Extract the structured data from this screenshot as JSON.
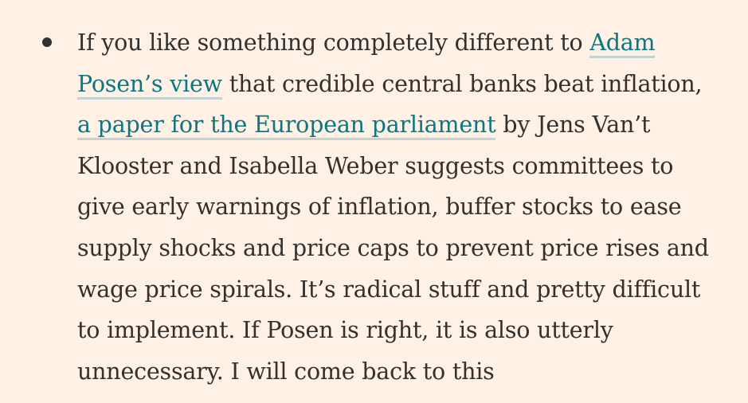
{
  "article": {
    "bullet": {
      "lines": [
        [
          {
            "text": "If you like something completely different to ",
            "link": false
          },
          {
            "text": "Adam",
            "link": true
          }
        ],
        [
          {
            "text": "Posen’s view",
            "link": true
          },
          {
            "text": " that credible central banks beat inflation,",
            "link": false
          }
        ],
        [
          {
            "text": "a paper for the European parliament",
            "link": true
          },
          {
            "text": " by Jens Van’t",
            "link": false
          }
        ],
        [
          {
            "text": "Klooster and Isabella Weber suggests committees to",
            "link": false
          }
        ],
        [
          {
            "text": "give early warnings of inflation, buffer stocks to ease",
            "link": false
          }
        ],
        [
          {
            "text": "supply shocks and price caps to prevent price rises and",
            "link": false
          }
        ],
        [
          {
            "text": "wage price spirals. It’s radical stuff and pretty difficult",
            "link": false
          }
        ],
        [
          {
            "text": "to implement. If Posen is right, it is also utterly",
            "link": false
          }
        ],
        [
          {
            "text": "unnecessary. I will come back to this",
            "link": false
          }
        ]
      ]
    },
    "colors": {
      "background": "#FFF1E5",
      "text": "#33302E",
      "link": "#0D7680",
      "link_underline": "#C3D3D2"
    }
  }
}
